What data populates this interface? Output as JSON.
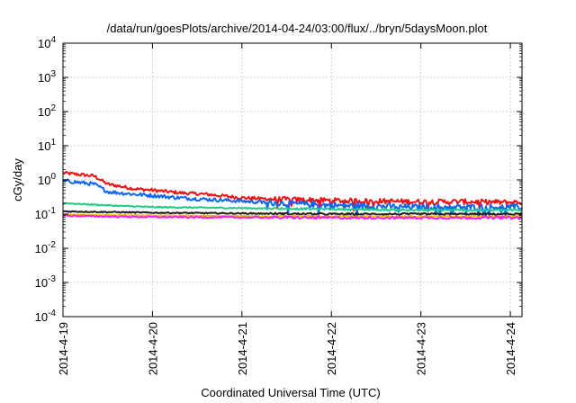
{
  "chart_data": {
    "type": "line",
    "title": "/data/run/goesPlots/archive/2014-04-24/03:00/flux/../bryn/5daysMoon.plot",
    "xlabel": "Coordinated Universal Time (UTC)",
    "ylabel": "cGy/day",
    "yscale": "log",
    "ylim": [
      0.0001,
      10000
    ],
    "xlim_days": [
      0,
      5.13
    ],
    "grid": true,
    "x_ticks": [
      {
        "label": "2014-4-19",
        "day": 0
      },
      {
        "label": "2014-4-20",
        "day": 1
      },
      {
        "label": "2014-4-21",
        "day": 2
      },
      {
        "label": "2014-4-22",
        "day": 3
      },
      {
        "label": "2014-4-23",
        "day": 4
      },
      {
        "label": "2014-4-24",
        "day": 5
      }
    ],
    "y_ticks": [
      {
        "base": "10",
        "exp": "4",
        "value": 10000
      },
      {
        "base": "10",
        "exp": "3",
        "value": 1000
      },
      {
        "base": "10",
        "exp": "2",
        "value": 100
      },
      {
        "base": "10",
        "exp": "1",
        "value": 10
      },
      {
        "base": "10",
        "exp": "0",
        "value": 1
      },
      {
        "base": "10",
        "exp": "-1",
        "value": 0.1
      },
      {
        "base": "10",
        "exp": "-2",
        "value": 0.01
      },
      {
        "base": "10",
        "exp": "-3",
        "value": 0.001
      },
      {
        "base": "10",
        "exp": "-4",
        "value": 0.0001
      }
    ],
    "series": [
      {
        "color": "#ee1111",
        "noise": 0.22,
        "x": [
          0,
          0.35,
          0.5,
          0.8,
          1.0,
          1.3,
          1.6,
          2.0,
          2.4,
          3.0,
          3.5,
          4.0,
          4.5,
          5.0,
          5.13
        ],
        "y": [
          1.6,
          1.3,
          0.75,
          0.55,
          0.5,
          0.42,
          0.38,
          0.3,
          0.27,
          0.25,
          0.24,
          0.23,
          0.23,
          0.22,
          0.22
        ]
      },
      {
        "color": "#1166ee",
        "noise": 0.25,
        "x": [
          0,
          0.35,
          0.5,
          0.8,
          1.0,
          1.3,
          1.6,
          2.0,
          2.4,
          3.0,
          3.5,
          4.0,
          4.5,
          5.0,
          5.13
        ],
        "y": [
          0.95,
          0.75,
          0.45,
          0.38,
          0.35,
          0.3,
          0.27,
          0.24,
          0.21,
          0.18,
          0.17,
          0.16,
          0.16,
          0.16,
          0.16
        ]
      },
      {
        "color": "#22cc88",
        "noise": 0.08,
        "x": [
          0,
          0.5,
          1.0,
          2.0,
          3.0,
          4.0,
          5.13
        ],
        "y": [
          0.21,
          0.18,
          0.16,
          0.15,
          0.14,
          0.13,
          0.13
        ]
      },
      {
        "color": "#222222",
        "noise": 0.08,
        "x": [
          0,
          0.5,
          1.0,
          2.0,
          3.0,
          4.0,
          5.13
        ],
        "y": [
          0.12,
          0.115,
          0.11,
          0.105,
          0.1,
          0.1,
          0.1
        ]
      },
      {
        "color": "#e8c000",
        "noise": 0.06,
        "x": [
          0,
          1.0,
          2.0,
          3.0,
          4.0,
          5.13
        ],
        "y": [
          0.095,
          0.09,
          0.088,
          0.086,
          0.085,
          0.085
        ]
      },
      {
        "color": "#ee22ee",
        "noise": 0.1,
        "x": [
          0,
          0.5,
          1.0,
          2.0,
          3.0,
          4.0,
          5.13
        ],
        "y": [
          0.09,
          0.085,
          0.082,
          0.08,
          0.078,
          0.078,
          0.078
        ]
      }
    ]
  }
}
